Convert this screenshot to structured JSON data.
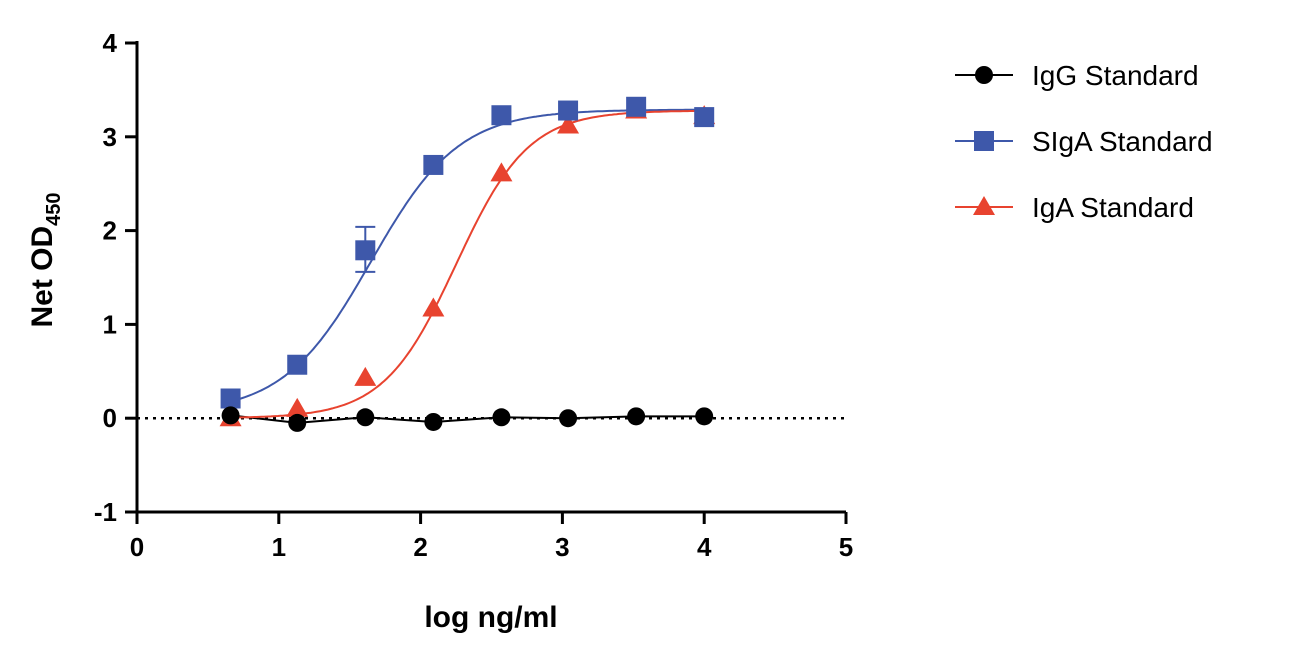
{
  "chart_data": {
    "type": "scatter",
    "xlabel": "log ng/ml",
    "ylabel": "Net OD",
    "ylabel_subscript": "450",
    "xlim": [
      0,
      5
    ],
    "ylim": [
      -1,
      4
    ],
    "xticks": [
      "0",
      "1",
      "2",
      "3",
      "4",
      "5"
    ],
    "yticks": [
      "-1",
      "0",
      "1",
      "2",
      "3",
      "4"
    ],
    "grid": false,
    "reference_line_y": 0,
    "legend_position": "right",
    "x": [
      0.66,
      1.13,
      1.61,
      2.09,
      2.57,
      3.04,
      3.52,
      4.0
    ],
    "series": [
      {
        "name": "IgG Standard",
        "color": "#000000",
        "marker": "circle",
        "values": [
          0.03,
          -0.05,
          0.01,
          -0.04,
          0.01,
          0.0,
          0.02,
          0.02
        ]
      },
      {
        "name": "SIgA Standard",
        "color": "#3e58aa",
        "marker": "square",
        "values": [
          0.21,
          0.57,
          1.79,
          2.7,
          3.23,
          3.28,
          3.32,
          3.21
        ],
        "error": [
          null,
          null,
          [
            1.56,
            2.04
          ],
          null,
          null,
          null,
          null,
          null
        ]
      },
      {
        "name": "IgA Standard",
        "color": "#e8432f",
        "marker": "triangle",
        "values": [
          0.0,
          0.1,
          0.43,
          1.17,
          2.61,
          3.12,
          3.28,
          3.22
        ]
      }
    ]
  }
}
